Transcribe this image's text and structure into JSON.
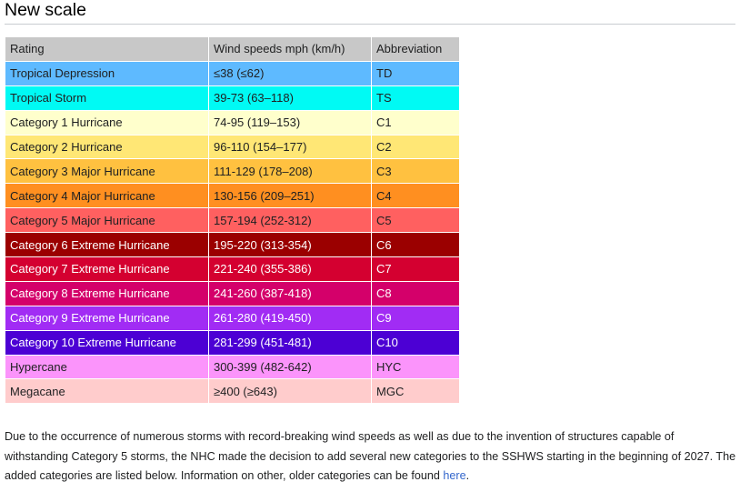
{
  "section": {
    "title": "New scale"
  },
  "table": {
    "headers": [
      "Rating",
      "Wind speeds mph (km/h)",
      "Abbreviation"
    ],
    "rows": [
      {
        "rating": "Tropical Depression",
        "wind": "≤38 (≤62)",
        "abbr": "TD",
        "bg": "#5ebaff",
        "fg": "#202122"
      },
      {
        "rating": "Tropical Storm",
        "wind": "39-73 (63–118)",
        "abbr": "TS",
        "bg": "#00faf4",
        "fg": "#202122"
      },
      {
        "rating": "Category 1 Hurricane",
        "wind": "74-95 (119–153)",
        "abbr": "C1",
        "bg": "#ffffcc",
        "fg": "#202122"
      },
      {
        "rating": "Category 2 Hurricane",
        "wind": "96-110 (154–177)",
        "abbr": "C2",
        "bg": "#ffe775",
        "fg": "#202122"
      },
      {
        "rating": "Category 3 Major Hurricane",
        "wind": "111-129 (178–208)",
        "abbr": "C3",
        "bg": "#ffc140",
        "fg": "#202122"
      },
      {
        "rating": "Category 4 Major Hurricane",
        "wind": "130-156 (209–251)",
        "abbr": "C4",
        "bg": "#ff8f20",
        "fg": "#202122"
      },
      {
        "rating": "Category 5 Major Hurricane",
        "wind": "157-194 (252-312)",
        "abbr": "C5",
        "bg": "#ff6060",
        "fg": "#202122"
      },
      {
        "rating": "Category 6 Extreme Hurricane",
        "wind": "195-220 (313-354)",
        "abbr": "C6",
        "bg": "#9b0000",
        "fg": "#ffffff"
      },
      {
        "rating": "Category 7 Extreme Hurricane",
        "wind": "221-240 (355-386)",
        "abbr": "C7",
        "bg": "#d40030",
        "fg": "#ffffff"
      },
      {
        "rating": "Category 8 Extreme Hurricane",
        "wind": "241-260 (387-418)",
        "abbr": "C8",
        "bg": "#d4006a",
        "fg": "#ffffff"
      },
      {
        "rating": "Category 9 Extreme Hurricane",
        "wind": "261-280 (419-450)",
        "abbr": "C9",
        "bg": "#a12cf4",
        "fg": "#ffffff"
      },
      {
        "rating": "Category 10 Extreme Hurricane",
        "wind": "281-299 (451-481)",
        "abbr": "C10",
        "bg": "#4c00d4",
        "fg": "#ffffff"
      },
      {
        "rating": "Hypercane",
        "wind": "300-399 (482-642)",
        "abbr": "HYC",
        "bg": "#fb94fb",
        "fg": "#202122"
      },
      {
        "rating": "Megacane",
        "wind": "≥400 (≥643)",
        "abbr": "MGC",
        "bg": "#ffcccc",
        "fg": "#202122"
      }
    ]
  },
  "note": {
    "text": "Due to the occurrence of numerous storms with record-breaking wind speeds as well as due to the invention of structures capable of withstanding Category 5 storms, the NHC made the decision to add several new categories to the SSHWS starting in the beginning of 2027. The added categories are listed below. Information on other, older categories can be found ",
    "link_text": "here",
    "end": "."
  }
}
